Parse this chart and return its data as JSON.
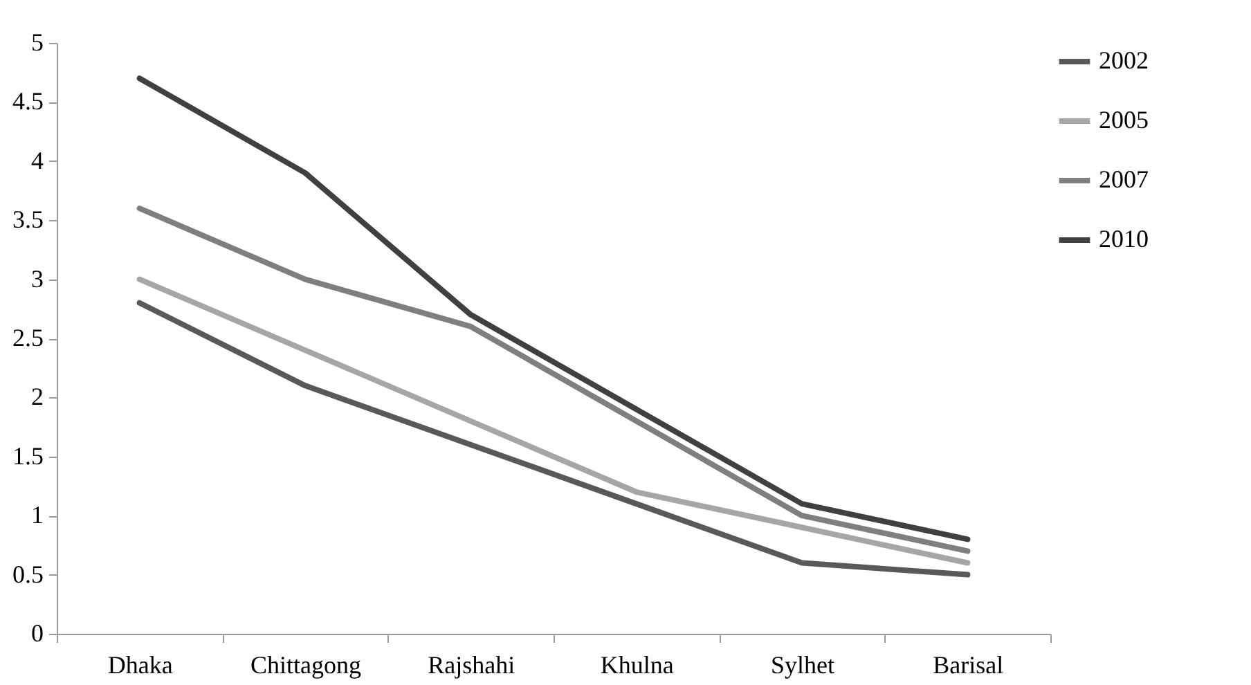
{
  "chart_data": {
    "type": "line",
    "categories": [
      "Dhaka",
      "Chittagong",
      "Rajshahi",
      "Khulna",
      "Sylhet",
      "Barisal"
    ],
    "series": [
      {
        "name": "2002",
        "color": "#595959",
        "values": [
          2.8,
          2.1,
          1.6,
          1.1,
          0.6,
          0.5
        ]
      },
      {
        "name": "2005",
        "color": "#a6a6a6",
        "values": [
          3.0,
          2.4,
          1.8,
          1.2,
          0.9,
          0.6
        ]
      },
      {
        "name": "2007",
        "color": "#7f7f7f",
        "values": [
          3.6,
          3.0,
          2.6,
          1.8,
          1.0,
          0.7
        ]
      },
      {
        "name": "2010",
        "color": "#404040",
        "values": [
          4.7,
          3.9,
          2.7,
          1.9,
          1.1,
          0.8
        ]
      }
    ],
    "ylim": [
      0,
      5
    ],
    "yticks": [
      0,
      0.5,
      1,
      1.5,
      2,
      2.5,
      3,
      3.5,
      4,
      4.5,
      5
    ],
    "grid": false,
    "legend": "right",
    "marker": "none",
    "line_style": "solid"
  }
}
